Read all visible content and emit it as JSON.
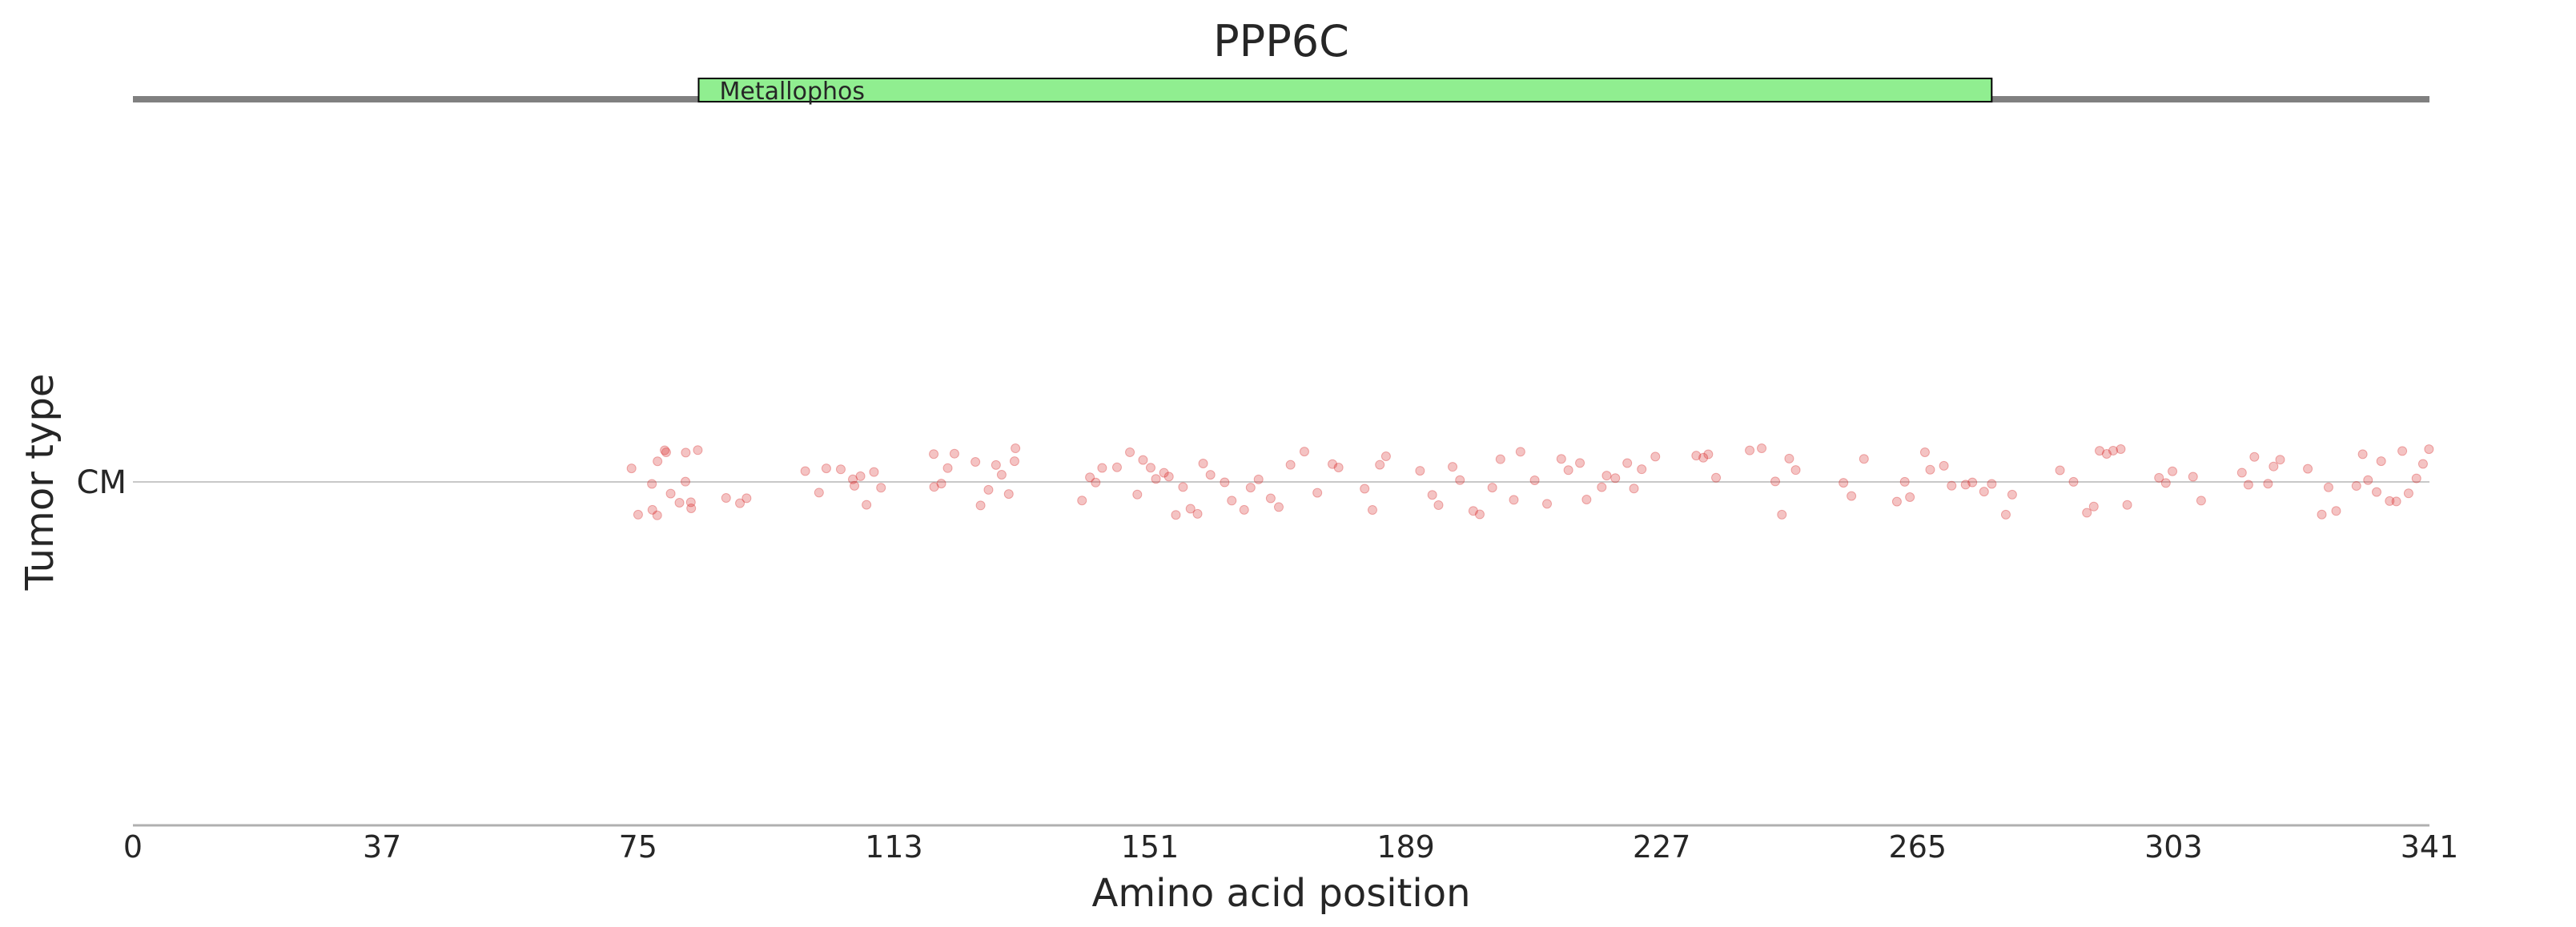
{
  "chart_data": {
    "type": "scatter",
    "title": "PPP6C",
    "xlabel": "Amino acid position",
    "ylabel": "Tumor type",
    "xlim": [
      0,
      341
    ],
    "x_ticks": [
      0,
      37,
      75,
      113,
      151,
      189,
      227,
      265,
      303,
      341
    ],
    "categories": [
      "CM"
    ],
    "grid": false,
    "domains": [
      {
        "name": "Metallophos",
        "start": 84,
        "end": 276,
        "color": "#90ee90"
      }
    ],
    "point_color": "#d62728",
    "series": [
      {
        "category": "CM",
        "positions": [
          74,
          75,
          77,
          77,
          78,
          78,
          79,
          79,
          80,
          81,
          82,
          82,
          83,
          83,
          84,
          88,
          90,
          91,
          100,
          102,
          103,
          105,
          107,
          107,
          108,
          109,
          110,
          111,
          119,
          119,
          120,
          121,
          122,
          125,
          126,
          127,
          128,
          129,
          130,
          131,
          131,
          141,
          142,
          143,
          144,
          146,
          148,
          149,
          150,
          151,
          152,
          153,
          154,
          155,
          156,
          157,
          158,
          159,
          160,
          162,
          163,
          165,
          166,
          167,
          169,
          170,
          172,
          174,
          176,
          178,
          179,
          183,
          184,
          185,
          186,
          191,
          193,
          194,
          196,
          197,
          199,
          200,
          202,
          203,
          205,
          206,
          208,
          210,
          212,
          213,
          215,
          216,
          218,
          219,
          220,
          222,
          223,
          224,
          226,
          232,
          233,
          234,
          235,
          240,
          242,
          244,
          245,
          246,
          247,
          254,
          255,
          257,
          262,
          263,
          264,
          266,
          267,
          269,
          270,
          272,
          273,
          275,
          276,
          278,
          279,
          286,
          288,
          290,
          291,
          292,
          293,
          294,
          295,
          296,
          301,
          302,
          303,
          306,
          307,
          313,
          314,
          315,
          317,
          318,
          319,
          323,
          325,
          326,
          327,
          330,
          331,
          332,
          333,
          334,
          335,
          336,
          337,
          338,
          339,
          340,
          341
        ]
      }
    ]
  }
}
